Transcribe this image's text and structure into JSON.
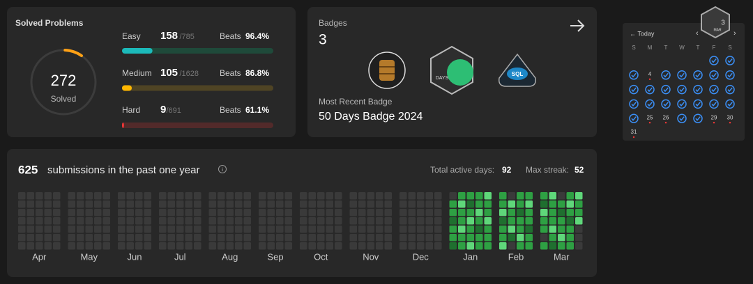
{
  "solved": {
    "title": "Solved Problems",
    "total": 272,
    "total_label": "Solved",
    "levels": [
      {
        "name": "Easy",
        "solved": 158,
        "of": {
          "value": 785,
          "label": "/785"
        },
        "beats_label": "Beats",
        "beats": "96.4%",
        "color": "#1cbaba",
        "track": "#1f4a3a"
      },
      {
        "name": "Medium",
        "solved": 105,
        "of": {
          "value": 1628,
          "label": "/1628"
        },
        "beats_label": "Beats",
        "beats": "86.8%",
        "color": "#ffb700",
        "track": "#4f4424"
      },
      {
        "name": "Hard",
        "solved": 9,
        "of": {
          "value": 691,
          "label": "/691"
        },
        "beats_label": "Beats",
        "beats": "61.1%",
        "color": "#f63737",
        "track": "#522a2a"
      }
    ]
  },
  "badges": {
    "title": "Badges",
    "count": "3",
    "recent_label": "Most Recent Badge",
    "recent": "50 Days Badge 2024",
    "days_icon_text": "DAYS",
    "sql_icon_text": "SQL"
  },
  "calendar": {
    "today": "← Today",
    "prev": "‹",
    "next": "›",
    "badge_day": "3",
    "badge_month": "MAR",
    "weekdays": [
      "S",
      "M",
      "T",
      "W",
      "T",
      "F",
      "S"
    ],
    "cells": [
      [
        null,
        null,
        null,
        null,
        null,
        true,
        true
      ],
      [
        true,
        4,
        true,
        true,
        true,
        true,
        true
      ],
      [
        true,
        true,
        true,
        true,
        true,
        true,
        true
      ],
      [
        true,
        true,
        true,
        true,
        true,
        true,
        true
      ],
      [
        true,
        25,
        26,
        true,
        true,
        29,
        30
      ],
      [
        31,
        null,
        null,
        null,
        null,
        null,
        null
      ]
    ]
  },
  "submissions": {
    "count": "625",
    "text": "submissions in the past one year",
    "active_label": "Total active days:",
    "active": "92",
    "streak_label": "Max streak:",
    "streak": "52",
    "level_colors": [
      "#3a3a3a",
      "#1f6f2f",
      "#2ea043",
      "#5fd77a"
    ],
    "months": [
      {
        "name": "Apr",
        "weeks": 5
      },
      {
        "name": "May",
        "weeks": 5
      },
      {
        "name": "Jun",
        "weeks": 4
      },
      {
        "name": "Jul",
        "weeks": 5
      },
      {
        "name": "Aug",
        "weeks": 5
      },
      {
        "name": "Sep",
        "weeks": 4
      },
      {
        "name": "Oct",
        "weeks": 5
      },
      {
        "name": "Nov",
        "weeks": 5
      },
      {
        "name": "Dec",
        "weeks": 5
      },
      {
        "name": "Jan",
        "levels": [
          [
            0,
            2,
            2,
            1,
            2,
            2,
            1
          ],
          [
            2,
            3,
            2,
            2,
            3,
            2,
            2
          ],
          [
            2,
            1,
            2,
            3,
            2,
            2,
            3
          ],
          [
            2,
            2,
            3,
            2,
            1,
            2,
            2
          ],
          [
            3,
            2,
            2,
            3,
            2,
            2,
            2
          ]
        ]
      },
      {
        "name": "Feb",
        "levels": [
          [
            2,
            2,
            3,
            1,
            2,
            2,
            3
          ],
          [
            0,
            3,
            2,
            2,
            3,
            1,
            0
          ],
          [
            2,
            2,
            1,
            2,
            2,
            3,
            2
          ],
          [
            2,
            3,
            2,
            2,
            1,
            2,
            2
          ]
        ]
      },
      {
        "name": "Mar",
        "levels": [
          [
            2,
            1,
            3,
            2,
            2,
            0,
            2
          ],
          [
            3,
            2,
            2,
            2,
            3,
            2,
            1
          ],
          [
            0,
            2,
            1,
            2,
            2,
            3,
            2
          ],
          [
            2,
            3,
            2,
            1,
            2,
            2,
            2
          ],
          [
            3,
            2,
            2,
            3,
            0,
            0,
            0
          ]
        ]
      }
    ]
  }
}
